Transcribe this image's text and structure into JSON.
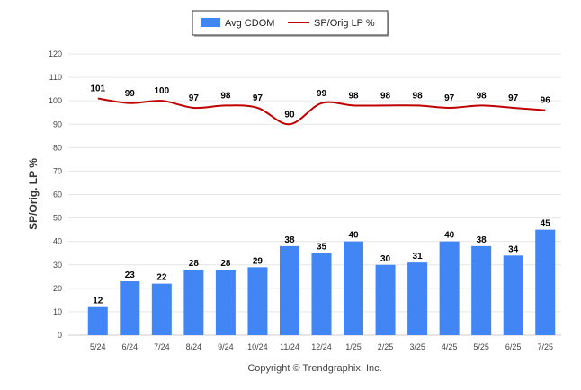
{
  "chart_data": {
    "type": "bar",
    "categories": [
      "5/24",
      "6/24",
      "7/24",
      "8/24",
      "9/24",
      "10/24",
      "11/24",
      "12/24",
      "1/25",
      "2/25",
      "3/25",
      "4/25",
      "5/25",
      "6/25",
      "7/25"
    ],
    "series": [
      {
        "name": "Avg CDOM",
        "type": "bar",
        "color": "#4285f4",
        "values": [
          12,
          23,
          22,
          28,
          28,
          29,
          38,
          35,
          40,
          30,
          31,
          40,
          38,
          34,
          45
        ]
      },
      {
        "name": "SP/Orig LP %",
        "type": "line",
        "color": "#c00000",
        "values": [
          101,
          99,
          100,
          97,
          98,
          97,
          90,
          99,
          98,
          98,
          98,
          97,
          98,
          97,
          96
        ]
      }
    ],
    "ylabel": "SP/Orig. LP %",
    "xlabel": "",
    "ylim": [
      0,
      120
    ],
    "yticks": [
      0,
      10,
      20,
      30,
      40,
      50,
      60,
      70,
      80,
      90,
      100,
      110,
      120
    ],
    "grid": true,
    "legend_position": "top-center"
  },
  "footer": {
    "copyright": "Copyright © Trendgraphix, Inc."
  }
}
